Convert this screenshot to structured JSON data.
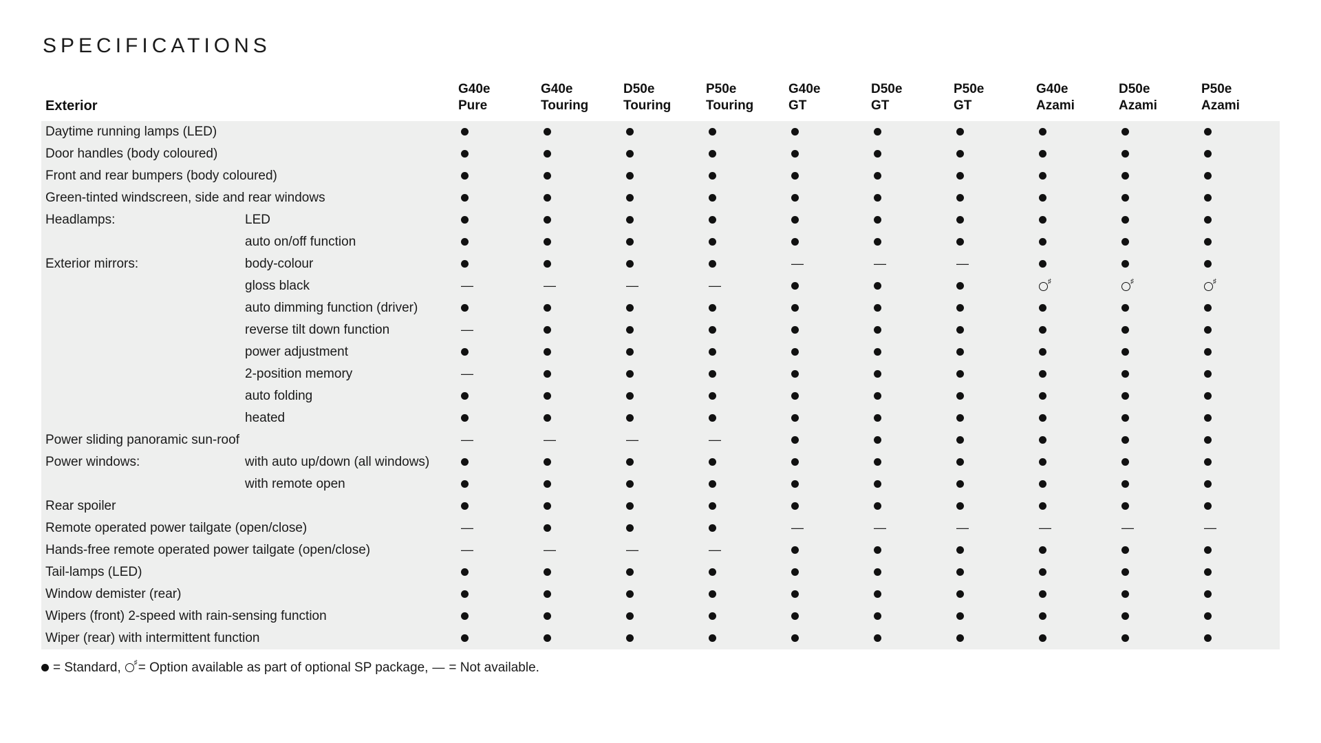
{
  "title": "SPECIFICATIONS",
  "category_label": "Exterior",
  "background_color": "#ffffff",
  "row_stripe_color": "#eeefee",
  "text_color": "#1a1a1a",
  "fontsize_title": 30,
  "fontsize_body": 19,
  "symbols": {
    "standard": {
      "render": "filled-circle",
      "color": "#111111",
      "legend": "Standard"
    },
    "option": {
      "render": "open-circle-sharp",
      "legend": "Option available as part of optional SP package"
    },
    "na": {
      "render": "dash",
      "legend": "Not available"
    }
  },
  "legend_text": "● = Standard, ○♯ = Option available as part of optional SP package, — = Not available.",
  "trims": [
    {
      "line1": "G40e",
      "line2": "Pure"
    },
    {
      "line1": "G40e",
      "line2": "Touring"
    },
    {
      "line1": "D50e",
      "line2": "Touring"
    },
    {
      "line1": "P50e",
      "line2": "Touring"
    },
    {
      "line1": "G40e",
      "line2": "GT"
    },
    {
      "line1": "D50e",
      "line2": "GT"
    },
    {
      "line1": "P50e",
      "line2": "GT"
    },
    {
      "line1": "G40e",
      "line2": "Azami"
    },
    {
      "line1": "D50e",
      "line2": "Azami"
    },
    {
      "line1": "P50e",
      "line2": "Azami"
    }
  ],
  "rows": [
    {
      "feature": "Daytime running lamps (LED)",
      "sub": "",
      "cells": [
        "s",
        "s",
        "s",
        "s",
        "s",
        "s",
        "s",
        "s",
        "s",
        "s"
      ]
    },
    {
      "feature": "Door handles (body coloured)",
      "sub": "",
      "cells": [
        "s",
        "s",
        "s",
        "s",
        "s",
        "s",
        "s",
        "s",
        "s",
        "s"
      ]
    },
    {
      "feature": "Front and rear bumpers (body coloured)",
      "sub": "",
      "cells": [
        "s",
        "s",
        "s",
        "s",
        "s",
        "s",
        "s",
        "s",
        "s",
        "s"
      ]
    },
    {
      "feature": "Green-tinted windscreen, side and rear windows",
      "sub": "",
      "cells": [
        "s",
        "s",
        "s",
        "s",
        "s",
        "s",
        "s",
        "s",
        "s",
        "s"
      ]
    },
    {
      "feature": "Headlamps:",
      "sub": "LED",
      "cells": [
        "s",
        "s",
        "s",
        "s",
        "s",
        "s",
        "s",
        "s",
        "s",
        "s"
      ]
    },
    {
      "feature": "",
      "sub": "auto on/off function",
      "cells": [
        "s",
        "s",
        "s",
        "s",
        "s",
        "s",
        "s",
        "s",
        "s",
        "s"
      ]
    },
    {
      "feature": "Exterior mirrors:",
      "sub": "body-colour",
      "cells": [
        "s",
        "s",
        "s",
        "s",
        "n",
        "n",
        "n",
        "s",
        "s",
        "s"
      ]
    },
    {
      "feature": "",
      "sub": "gloss black",
      "cells": [
        "n",
        "n",
        "n",
        "n",
        "s",
        "s",
        "s",
        "o",
        "o",
        "o"
      ]
    },
    {
      "feature": "",
      "sub": "auto dimming function (driver)",
      "cells": [
        "s",
        "s",
        "s",
        "s",
        "s",
        "s",
        "s",
        "s",
        "s",
        "s"
      ]
    },
    {
      "feature": "",
      "sub": "reverse tilt down function",
      "cells": [
        "n",
        "s",
        "s",
        "s",
        "s",
        "s",
        "s",
        "s",
        "s",
        "s"
      ]
    },
    {
      "feature": "",
      "sub": "power adjustment",
      "cells": [
        "s",
        "s",
        "s",
        "s",
        "s",
        "s",
        "s",
        "s",
        "s",
        "s"
      ]
    },
    {
      "feature": "",
      "sub": "2-position memory",
      "cells": [
        "n",
        "s",
        "s",
        "s",
        "s",
        "s",
        "s",
        "s",
        "s",
        "s"
      ]
    },
    {
      "feature": "",
      "sub": "auto folding",
      "cells": [
        "s",
        "s",
        "s",
        "s",
        "s",
        "s",
        "s",
        "s",
        "s",
        "s"
      ]
    },
    {
      "feature": "",
      "sub": "heated",
      "cells": [
        "s",
        "s",
        "s",
        "s",
        "s",
        "s",
        "s",
        "s",
        "s",
        "s"
      ]
    },
    {
      "feature": "Power sliding panoramic sun-roof",
      "sub": "",
      "cells": [
        "n",
        "n",
        "n",
        "n",
        "s",
        "s",
        "s",
        "s",
        "s",
        "s"
      ]
    },
    {
      "feature": "Power windows:",
      "sub": "with auto up/down (all windows)",
      "cells": [
        "s",
        "s",
        "s",
        "s",
        "s",
        "s",
        "s",
        "s",
        "s",
        "s"
      ]
    },
    {
      "feature": "",
      "sub": "with remote open",
      "cells": [
        "s",
        "s",
        "s",
        "s",
        "s",
        "s",
        "s",
        "s",
        "s",
        "s"
      ]
    },
    {
      "feature": "Rear spoiler",
      "sub": "",
      "cells": [
        "s",
        "s",
        "s",
        "s",
        "s",
        "s",
        "s",
        "s",
        "s",
        "s"
      ]
    },
    {
      "feature": "Remote operated power tailgate (open/close)",
      "sub": "",
      "cells": [
        "n",
        "s",
        "s",
        "s",
        "n",
        "n",
        "n",
        "n",
        "n",
        "n"
      ]
    },
    {
      "feature": "Hands-free remote operated power tailgate (open/close)",
      "sub": "",
      "cells": [
        "n",
        "n",
        "n",
        "n",
        "s",
        "s",
        "s",
        "s",
        "s",
        "s"
      ]
    },
    {
      "feature": "Tail-lamps (LED)",
      "sub": "",
      "cells": [
        "s",
        "s",
        "s",
        "s",
        "s",
        "s",
        "s",
        "s",
        "s",
        "s"
      ]
    },
    {
      "feature": "Window demister (rear)",
      "sub": "",
      "cells": [
        "s",
        "s",
        "s",
        "s",
        "s",
        "s",
        "s",
        "s",
        "s",
        "s"
      ]
    },
    {
      "feature": "Wipers (front) 2-speed with rain-sensing function",
      "sub": "",
      "cells": [
        "s",
        "s",
        "s",
        "s",
        "s",
        "s",
        "s",
        "s",
        "s",
        "s"
      ]
    },
    {
      "feature": "Wiper (rear) with intermittent function",
      "sub": "",
      "cells": [
        "s",
        "s",
        "s",
        "s",
        "s",
        "s",
        "s",
        "s",
        "s",
        "s"
      ]
    }
  ]
}
